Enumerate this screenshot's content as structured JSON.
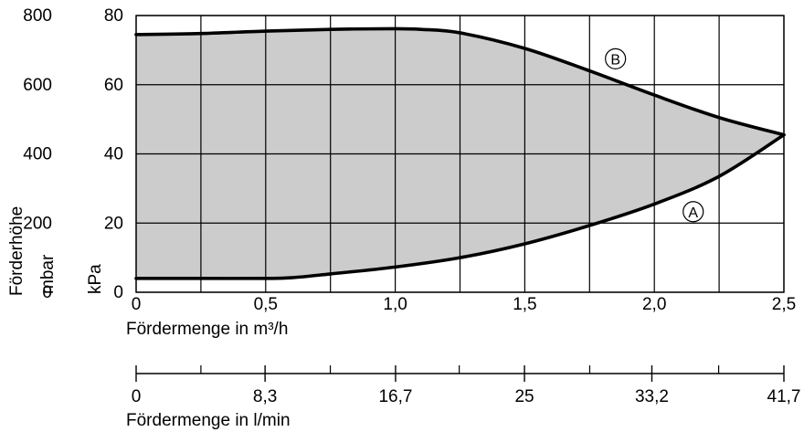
{
  "chart_data": {
    "type": "area",
    "x_axis": {
      "label": "Fördermenge in m³/h",
      "range": [
        0,
        2.5
      ],
      "ticks": [
        0,
        0.5,
        1.0,
        1.5,
        2.0,
        2.5
      ],
      "tick_labels": [
        "0",
        "0,5",
        "1,0",
        "1,5",
        "2,0",
        "2,5"
      ],
      "grid_step": 0.25
    },
    "secondary_x_axis": {
      "label": "Fördermenge in l/min",
      "range": [
        0,
        41.7
      ],
      "ticks": [
        0,
        8.3,
        16.7,
        25,
        33.2,
        41.7
      ],
      "tick_labels": [
        "0",
        "8,3",
        "16,7",
        "25",
        "33,2",
        "41,7"
      ],
      "minor_ticks": [
        4.17,
        12.5,
        20.8,
        29.2,
        37.5
      ]
    },
    "y_axis_mbar": {
      "label": "Förderhöhe",
      "unit": "mbar",
      "range": [
        0,
        800
      ],
      "ticks": [
        0,
        200,
        400,
        600,
        800
      ],
      "tick_labels": [
        "0",
        "200",
        "400",
        "600",
        "800"
      ]
    },
    "y_axis_kpa": {
      "unit": "kPa",
      "range": [
        0,
        80
      ],
      "ticks": [
        0,
        20,
        40,
        60,
        80
      ],
      "tick_labels": [
        "0",
        "20",
        "40",
        "60",
        "80"
      ]
    },
    "grid": true,
    "series": [
      {
        "name": "B",
        "x": [
          0,
          0.25,
          0.5,
          0.75,
          1.0,
          1.1,
          1.25,
          1.5,
          1.75,
          2.0,
          2.25,
          2.5
        ],
        "y": [
          74.5,
          74.8,
          75.5,
          76.0,
          76.2,
          76.0,
          75.0,
          70.5,
          64.0,
          57.0,
          50.5,
          45.5
        ]
      },
      {
        "name": "A",
        "x": [
          0,
          0.25,
          0.5,
          0.6,
          0.75,
          1.0,
          1.25,
          1.5,
          1.75,
          2.0,
          2.25,
          2.5
        ],
        "y": [
          4.0,
          4.0,
          4.0,
          4.2,
          5.3,
          7.3,
          10.0,
          14.0,
          19.3,
          25.5,
          33.5,
          45.5
        ]
      }
    ],
    "fill_between": [
      "A",
      "B"
    ],
    "fill_color": "#cccccc",
    "curve_markers": [
      {
        "label": "B",
        "x": 1.85,
        "y": 67.5
      },
      {
        "label": "A",
        "x": 2.15,
        "y": 23.3
      }
    ]
  }
}
